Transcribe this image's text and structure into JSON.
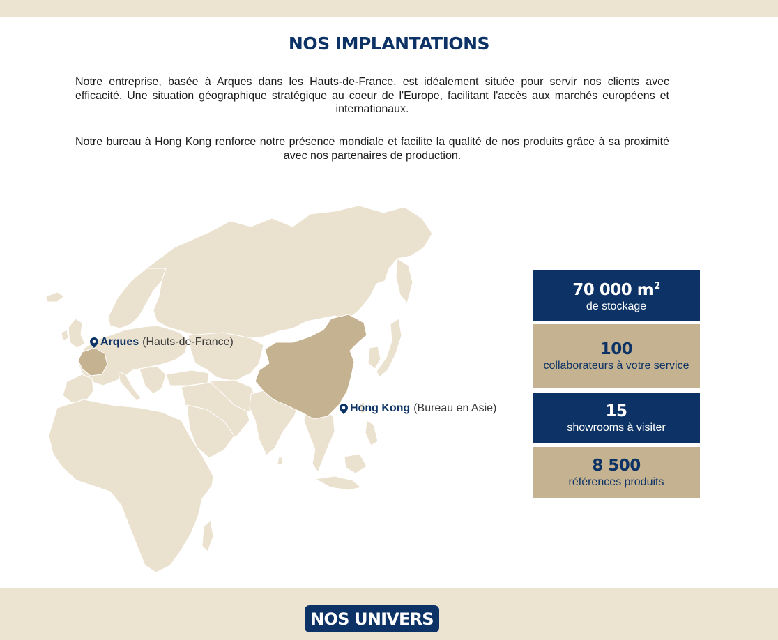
{
  "colors": {
    "navy": "#0d3366",
    "beige": "#c5b290",
    "cream": "#ede3d1",
    "map_land": "#ebe1cf",
    "map_highlight": "#c5b290"
  },
  "section": {
    "title": "NOS IMPLANTATIONS",
    "paragraph_1": "Notre entreprise, basée à Arques dans les Hauts-de-France, est idéalement située pour servir nos clients avec efficacité. Une situation géographique stratégique au coeur de l'Europe, facilitant l'accès aux marchés européens et internationaux.",
    "paragraph_2": "Notre bureau à Hong Kong renforce notre présence mondiale et facilite la qualité de nos produits grâce à sa proximité avec nos partenaires de production."
  },
  "map": {
    "pins": [
      {
        "icon": "map-pin-icon",
        "city": "Arques",
        "detail": "(Hauts-de-France)"
      },
      {
        "icon": "map-pin-icon",
        "city": "Hong Kong",
        "detail": "(Bureau en Asie)"
      }
    ],
    "highlighted_countries": [
      "France",
      "China"
    ]
  },
  "stats": [
    {
      "value": "70 000 m",
      "superscript": "2",
      "label": "de stockage",
      "style": "navy"
    },
    {
      "value": "100",
      "label": "collaborateurs à votre service",
      "style": "beige"
    },
    {
      "value": "15",
      "label": "showrooms à visiter",
      "style": "navy"
    },
    {
      "value": "8 500",
      "label": "références produits",
      "style": "beige"
    }
  ],
  "footer": {
    "univers_button": "NOS UNIVERS"
  }
}
